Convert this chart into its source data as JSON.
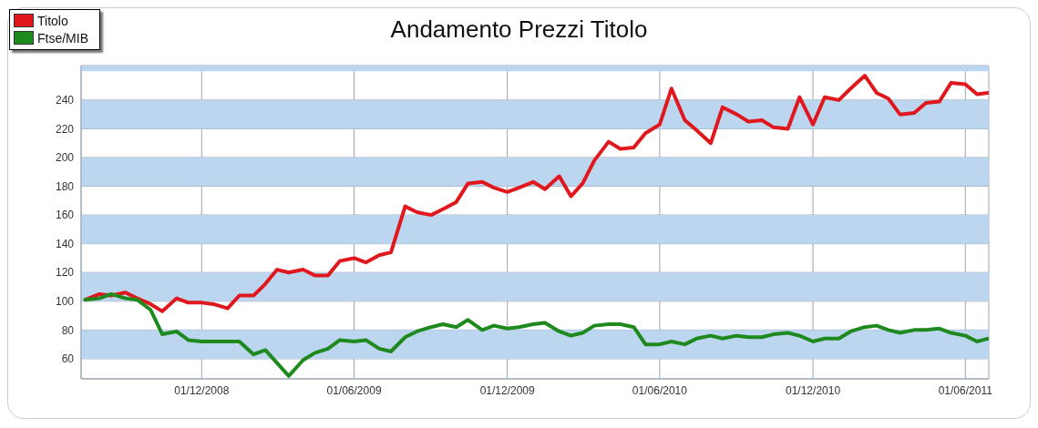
{
  "chart_data": {
    "type": "line",
    "title": "Andamento Prezzi Titolo",
    "x": [
      "2008-07-15",
      "2008-08-01",
      "2008-08-15",
      "2008-09-01",
      "2008-09-15",
      "2008-10-01",
      "2008-10-15",
      "2008-11-01",
      "2008-11-15",
      "2008-12-01",
      "2008-12-15",
      "2009-01-01",
      "2009-01-15",
      "2009-02-01",
      "2009-02-15",
      "2009-03-01",
      "2009-03-15",
      "2009-04-01",
      "2009-04-15",
      "2009-05-01",
      "2009-05-15",
      "2009-06-01",
      "2009-06-15",
      "2009-07-01",
      "2009-07-15",
      "2009-08-01",
      "2009-08-15",
      "2009-09-01",
      "2009-09-15",
      "2009-10-01",
      "2009-10-15",
      "2009-11-01",
      "2009-11-15",
      "2009-12-01",
      "2009-12-15",
      "2010-01-01",
      "2010-01-15",
      "2010-02-01",
      "2010-02-15",
      "2010-03-01",
      "2010-03-15",
      "2010-04-01",
      "2010-04-15",
      "2010-05-01",
      "2010-05-15",
      "2010-06-01",
      "2010-06-15",
      "2010-07-01",
      "2010-07-15",
      "2010-08-01",
      "2010-08-15",
      "2010-09-01",
      "2010-09-15",
      "2010-10-01",
      "2010-10-15",
      "2010-11-01",
      "2010-11-15",
      "2010-12-01",
      "2010-12-15",
      "2011-01-01",
      "2011-01-15",
      "2011-02-01",
      "2011-02-15",
      "2011-03-01",
      "2011-03-15",
      "2011-04-01",
      "2011-04-15",
      "2011-05-01",
      "2011-05-15",
      "2011-06-01",
      "2011-06-15",
      "2011-06-28"
    ],
    "series": [
      {
        "name": "Titolo",
        "color": "#e0181e",
        "values": [
          101,
          105,
          104,
          106,
          102,
          98,
          93,
          102,
          99,
          99,
          98,
          95,
          104,
          104,
          112,
          122,
          120,
          122,
          118,
          118,
          128,
          130,
          127,
          132,
          134,
          166,
          162,
          160,
          164,
          169,
          182,
          183,
          179,
          176,
          179,
          183,
          178,
          187,
          173,
          182,
          198,
          211,
          206,
          207,
          217,
          223,
          248,
          226,
          219,
          210,
          235,
          230,
          225,
          226,
          221,
          220,
          242,
          223,
          242,
          240,
          248,
          257,
          245,
          241,
          230,
          231,
          238,
          239,
          252,
          251,
          244,
          245
        ]
      },
      {
        "name": "Ftse/MIB",
        "color": "#1e8a1e",
        "values": [
          101,
          102,
          105,
          102,
          101,
          94,
          77,
          79,
          73,
          72,
          72,
          72,
          72,
          63,
          66,
          57,
          48,
          59,
          64,
          67,
          73,
          72,
          73,
          67,
          65,
          75,
          79,
          82,
          84,
          82,
          87,
          80,
          83,
          81,
          82,
          84,
          85,
          79,
          76,
          78,
          83,
          84,
          84,
          82,
          70,
          70,
          72,
          70,
          74,
          76,
          74,
          76,
          75,
          75,
          77,
          78,
          76,
          72,
          74,
          74,
          79,
          82,
          83,
          80,
          78,
          80,
          80,
          81,
          78,
          76,
          72,
          74
        ]
      }
    ],
    "xlim": [
      "2008-07-10",
      "2011-06-29"
    ],
    "xticks": [
      {
        "value": "2008-12-01",
        "label": "01/12/2008"
      },
      {
        "value": "2009-06-01",
        "label": "01/06/2009"
      },
      {
        "value": "2009-12-01",
        "label": "01/12/2009"
      },
      {
        "value": "2010-06-01",
        "label": "01/06/2010"
      },
      {
        "value": "2010-12-01",
        "label": "01/12/2010"
      },
      {
        "value": "2011-06-01",
        "label": "01/06/2011"
      }
    ],
    "ylim": [
      46,
      264
    ],
    "yticks": [
      60,
      80,
      100,
      120,
      140,
      160,
      180,
      200,
      220,
      240
    ],
    "bands": [
      {
        "axis": "y",
        "from": 60,
        "to": 80,
        "color": "#bcd6f0"
      },
      {
        "axis": "y",
        "from": 100,
        "to": 120,
        "color": "#bcd6f0"
      },
      {
        "axis": "y",
        "from": 140,
        "to": 160,
        "color": "#bcd6f0"
      },
      {
        "axis": "y",
        "from": 180,
        "to": 200,
        "color": "#bcd6f0"
      },
      {
        "axis": "y",
        "from": 220,
        "to": 240,
        "color": "#bcd6f0"
      },
      {
        "axis": "y",
        "from": 260,
        "to": 264,
        "color": "#bcd6f0"
      }
    ],
    "grid": true,
    "legend": "top left",
    "marker": "none",
    "line_style": "solid"
  }
}
